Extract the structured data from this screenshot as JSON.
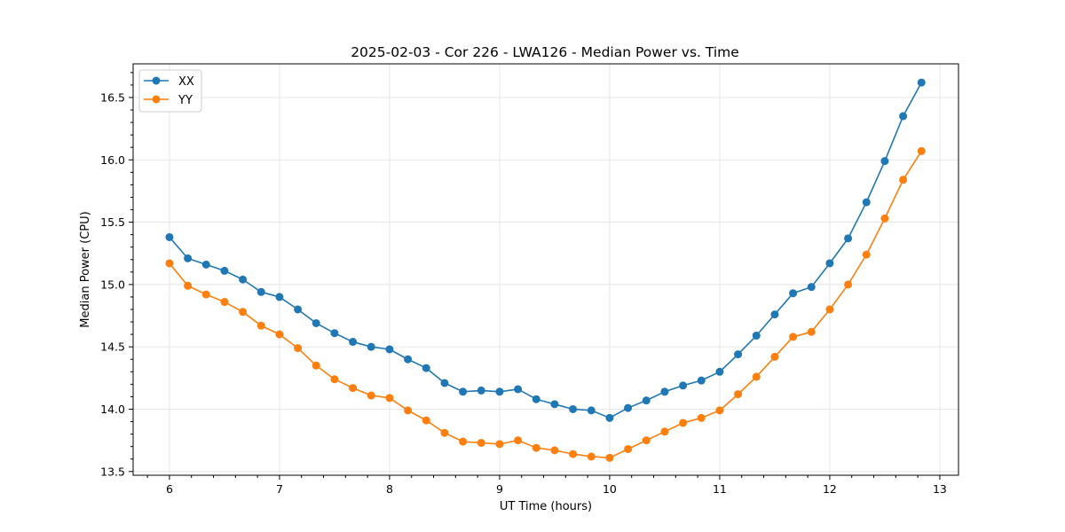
{
  "chart_data": {
    "type": "line",
    "title": "2025-02-03 - Cor 226 - LWA126 - Median Power vs. Time",
    "xlabel": "UT Time (hours)",
    "ylabel": "Median Power (CPU)",
    "xlim": [
      5.67,
      13.17
    ],
    "ylim": [
      13.47,
      16.77
    ],
    "xticks": [
      6,
      7,
      8,
      9,
      10,
      11,
      12,
      13
    ],
    "xtick_labels": [
      "6",
      "7",
      "8",
      "9",
      "10",
      "11",
      "12",
      "13"
    ],
    "yticks": [
      13.5,
      14.0,
      14.5,
      15.0,
      15.5,
      16.0,
      16.5
    ],
    "ytick_labels": [
      "13.5",
      "14.0",
      "14.5",
      "15.0",
      "15.5",
      "16.0",
      "16.5"
    ],
    "grid": true,
    "legend_position": "top-left",
    "x": [
      6.0,
      6.1667,
      6.3333,
      6.5,
      6.6667,
      6.8333,
      7.0,
      7.1667,
      7.3333,
      7.5,
      7.6667,
      7.8333,
      8.0,
      8.1667,
      8.3333,
      8.5,
      8.6667,
      8.8333,
      9.0,
      9.1667,
      9.3333,
      9.5,
      9.6667,
      9.8333,
      10.0,
      10.1667,
      10.3333,
      10.5,
      10.6667,
      10.8333,
      11.0,
      11.1667,
      11.3333,
      11.5,
      11.6667,
      11.8333,
      12.0,
      12.1667,
      12.3333,
      12.5,
      12.6667,
      12.8333
    ],
    "series": [
      {
        "name": "XX",
        "color": "#1f77b4",
        "values": [
          15.38,
          15.21,
          15.16,
          15.11,
          15.04,
          14.94,
          14.9,
          14.8,
          14.69,
          14.61,
          14.54,
          14.5,
          14.48,
          14.4,
          14.33,
          14.21,
          14.14,
          14.15,
          14.14,
          14.16,
          14.08,
          14.04,
          14.0,
          13.99,
          13.93,
          14.01,
          14.07,
          14.14,
          14.19,
          14.23,
          14.3,
          14.44,
          14.59,
          14.76,
          14.93,
          14.98,
          15.17,
          15.37,
          15.66,
          15.99,
          16.35,
          16.62
        ]
      },
      {
        "name": "YY",
        "color": "#ff7f0e",
        "values": [
          15.17,
          14.99,
          14.92,
          14.86,
          14.78,
          14.67,
          14.6,
          14.49,
          14.35,
          14.24,
          14.17,
          14.11,
          14.09,
          13.99,
          13.91,
          13.81,
          13.74,
          13.73,
          13.72,
          13.75,
          13.69,
          13.67,
          13.64,
          13.62,
          13.61,
          13.68,
          13.75,
          13.82,
          13.89,
          13.93,
          13.99,
          14.12,
          14.26,
          14.42,
          14.58,
          14.62,
          14.8,
          15.0,
          15.24,
          15.53,
          15.84,
          16.07
        ]
      }
    ]
  }
}
